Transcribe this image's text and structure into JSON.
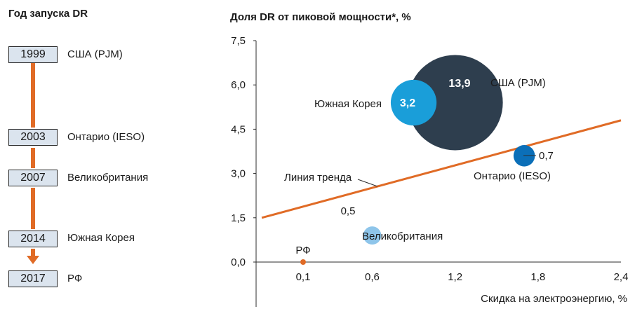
{
  "timeline": {
    "title": "Год запуска DR",
    "items": [
      {
        "year": "1999",
        "label": "США (PJM)"
      },
      {
        "year": "2003",
        "label": "Онтарио (IESO)"
      },
      {
        "year": "2007",
        "label": "Великобритания"
      },
      {
        "year": "2014",
        "label": "Южная Корея"
      },
      {
        "year": "2017",
        "label": "РФ"
      }
    ],
    "line_color": "#e06b26",
    "box_fill": "#dbe4ee"
  },
  "chart_data": {
    "type": "scatter",
    "title": "Доля DR от пиковой мощности*, %",
    "xlabel": "Скидка на электроэнергию, %",
    "ylabel": "",
    "xlim": [
      0,
      2.4
    ],
    "ylim": [
      -1.5,
      7.5
    ],
    "xticks": [
      "0,1",
      "0,6",
      "1,2",
      "1,8",
      "2,4"
    ],
    "xtick_values": [
      0.1,
      0.6,
      1.2,
      1.8,
      2.4
    ],
    "yticks": [
      "0,0",
      "1,5",
      "3,0",
      "4,5",
      "6,0",
      "7,5"
    ],
    "ytick_values": [
      0,
      1.5,
      3,
      4.5,
      6,
      7.5
    ],
    "grid": false,
    "points": [
      {
        "name": "США (PJM)",
        "x": 1.2,
        "y": 5.4,
        "size": 13.9,
        "size_label": "13,9",
        "color": "#2e3e4e"
      },
      {
        "name": "Южная Корея",
        "x": 0.9,
        "y": 5.4,
        "size": 3.2,
        "size_label": "3,2",
        "color": "#1a9ed9"
      },
      {
        "name": "Онтарио (IESO)",
        "x": 1.7,
        "y": 3.6,
        "size": 0.7,
        "size_label": "0,7",
        "color": "#0b6fb8"
      },
      {
        "name": "Великобритания",
        "x": 0.6,
        "y": 0.9,
        "size": 0.5,
        "size_label": "0,5",
        "color": "#8ec5ea"
      },
      {
        "name": "РФ",
        "x": 0.1,
        "y": 0.0,
        "size": 0.1,
        "size_label": "",
        "color": "#e06b26"
      }
    ],
    "trend": {
      "label": "Линия тренда",
      "x": [
        0.03,
        2.4
      ],
      "y": [
        1.5,
        4.8
      ],
      "color": "#e06b26"
    }
  }
}
